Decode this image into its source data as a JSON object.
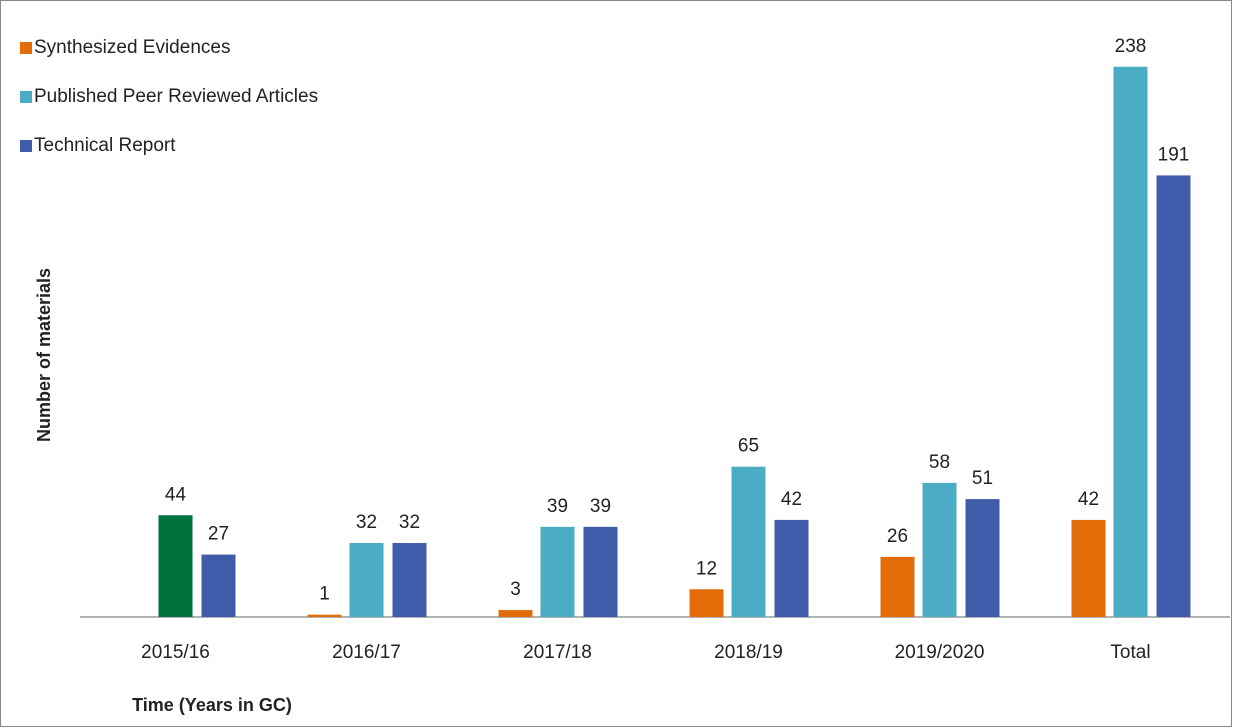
{
  "chart_data": {
    "type": "bar",
    "categories": [
      "2015/16",
      "2016/17",
      "2017/18",
      "2018/19",
      "2019/2020",
      "Total"
    ],
    "series": [
      {
        "name": "Synthesized Evidences",
        "color": "#e36c09",
        "values": [
          null,
          1,
          3,
          12,
          26,
          42
        ]
      },
      {
        "name": "Published Peer Reviewed Articles",
        "color": "#4bacc6",
        "point_colors": [
          "#00703c",
          "#4bacc6",
          "#4bacc6",
          "#4bacc6",
          "#4bacc6",
          "#4bacc6"
        ],
        "values": [
          44,
          32,
          39,
          65,
          58,
          238
        ]
      },
      {
        "name": "Technical Report",
        "color": "#3f5ba9",
        "values": [
          27,
          32,
          39,
          42,
          51,
          191
        ]
      }
    ],
    "y_label": "Number of materials",
    "x_label": "Time (Years in GC)",
    "ylim": [
      0,
      250
    ],
    "legend": "top-left"
  }
}
